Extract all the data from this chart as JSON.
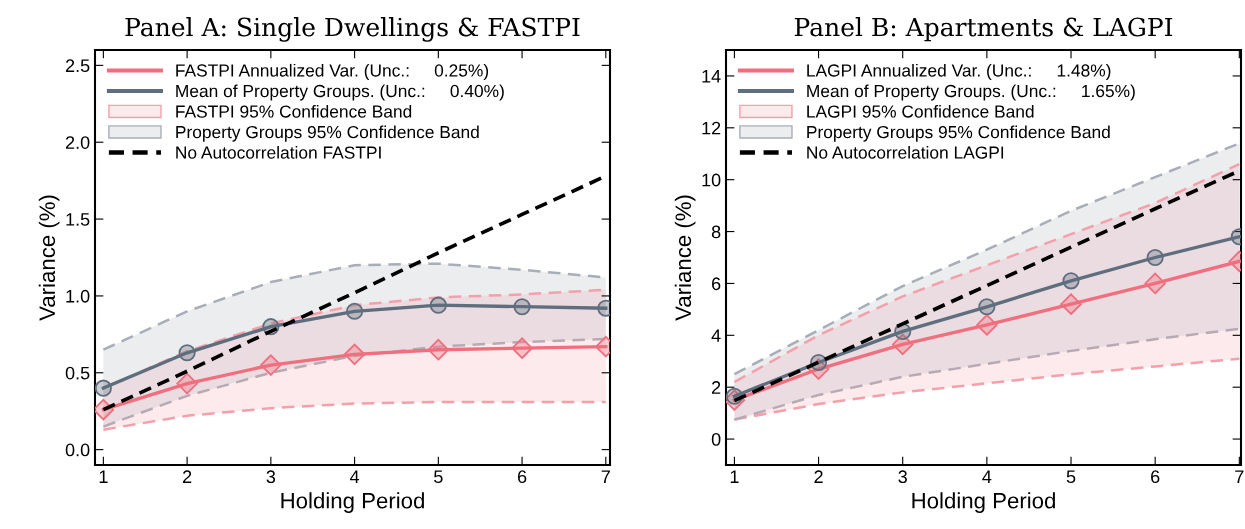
{
  "chart_data": [
    {
      "type": "line",
      "title": "Panel A: Single Dwellings & FASTPI",
      "xlabel": "Holding Period",
      "ylabel": "Variance (%)",
      "x": [
        1,
        2,
        3,
        4,
        5,
        6,
        7
      ],
      "xlim": [
        0.9,
        7.05
      ],
      "xticks": [
        1,
        2,
        3,
        4,
        5,
        6,
        7
      ],
      "ylim": [
        -0.1,
        2.6
      ],
      "yticks": [
        {
          "value": 0,
          "label": "0.0"
        },
        0.5,
        {
          "value": 1,
          "label": "1.0"
        },
        1.5,
        {
          "value": 2,
          "label": "2.0"
        },
        2.5
      ],
      "grid": false,
      "legend": "top left",
      "series": [
        {
          "name": "FASTPI Annualized Var. (Unc.:     0.25%)",
          "type": "line",
          "marker": "diamond",
          "color": "#ef6f7f",
          "values": [
            0.26,
            0.43,
            0.55,
            0.62,
            0.65,
            0.66,
            0.67
          ]
        },
        {
          "name": "Mean of Property Groups. (Unc.:     0.40%)",
          "type": "line",
          "marker": "circle",
          "color": "#5f6e7e",
          "values": [
            0.4,
            0.63,
            0.8,
            0.9,
            0.94,
            0.93,
            0.92
          ]
        },
        {
          "name": "FASTPI 95% Confidence Band",
          "type": "area",
          "line_style": "dashed",
          "color": "#f4a0aa",
          "values": [
            0.4,
            0.64,
            0.82,
            0.94,
            0.99,
            1.01,
            1.04
          ]
        },
        {
          "name": "Property Groups 95% Confidence Band",
          "type": "area",
          "line_style": "dashed",
          "color": "#a8aeb8",
          "values": [
            0.65,
            0.9,
            1.09,
            1.2,
            1.21,
            1.17,
            1.12
          ]
        },
        {
          "type": "line",
          "marker": "none",
          "line_style": "dashed",
          "color": "#f4a0aa",
          "values": [
            0.13,
            0.22,
            0.27,
            0.3,
            0.31,
            0.31,
            0.31
          ]
        },
        {
          "type": "line",
          "marker": "none",
          "line_style": "dashed",
          "color": "#a8aeb8",
          "values": [
            0.15,
            0.35,
            0.5,
            0.61,
            0.67,
            0.7,
            0.72
          ]
        },
        {
          "name": "No Autocorrelation FASTPI",
          "type": "line",
          "marker": "none",
          "line_style": "dashed",
          "color": "#000000",
          "values": [
            0.26,
            0.51,
            0.77,
            1.02,
            1.28,
            1.53,
            1.78
          ]
        }
      ]
    },
    {
      "type": "line",
      "title": "Panel B: Apartments & LAGPI",
      "xlabel": "Holding Period",
      "ylabel": "Variance (%)",
      "x": [
        1,
        2,
        3,
        4,
        5,
        6,
        7
      ],
      "xlim": [
        0.9,
        7.02
      ],
      "xticks": [
        1,
        2,
        3,
        4,
        5,
        6,
        7
      ],
      "ylim": [
        -1,
        15
      ],
      "yticks": [
        0,
        2,
        4,
        6,
        8,
        10,
        12,
        14
      ],
      "grid": false,
      "legend": "top left",
      "series": [
        {
          "name": "LAGPI Annualized Var. (Unc.:     1.48%)",
          "type": "line",
          "marker": "diamond",
          "color": "#ef6f7f",
          "values": [
            1.5,
            2.7,
            3.65,
            4.4,
            5.2,
            6.0,
            6.85
          ]
        },
        {
          "name": "Mean of Property Groups. (Unc.:     1.65%)",
          "type": "line",
          "marker": "circle",
          "color": "#5f6e7e",
          "values": [
            1.65,
            2.95,
            4.15,
            5.1,
            6.1,
            7.0,
            7.8
          ]
        },
        {
          "name": "LAGPI 95% Confidence Band",
          "type": "area",
          "line_style": "dashed",
          "color": "#f4a0aa",
          "values": [
            2.2,
            4.0,
            5.5,
            6.7,
            7.9,
            9.1,
            10.6
          ]
        },
        {
          "name": "Property Groups 95% Confidence Band",
          "type": "area",
          "line_style": "dashed",
          "color": "#a8aeb8",
          "values": [
            2.5,
            4.2,
            5.9,
            7.3,
            8.8,
            10.1,
            11.4
          ]
        },
        {
          "type": "line",
          "marker": "none",
          "line_style": "dashed",
          "color": "#f4a0aa",
          "values": [
            0.75,
            1.35,
            1.8,
            2.15,
            2.5,
            2.8,
            3.1
          ]
        },
        {
          "type": "line",
          "marker": "none",
          "line_style": "dashed",
          "color": "#a8aeb8",
          "values": [
            0.75,
            1.7,
            2.4,
            2.9,
            3.4,
            3.85,
            4.25
          ]
        },
        {
          "name": "No Autocorrelation LAGPI",
          "type": "line",
          "marker": "none",
          "line_style": "dashed",
          "color": "#000000",
          "values": [
            1.48,
            2.96,
            4.44,
            5.92,
            7.4,
            8.88,
            10.34
          ]
        }
      ]
    }
  ]
}
